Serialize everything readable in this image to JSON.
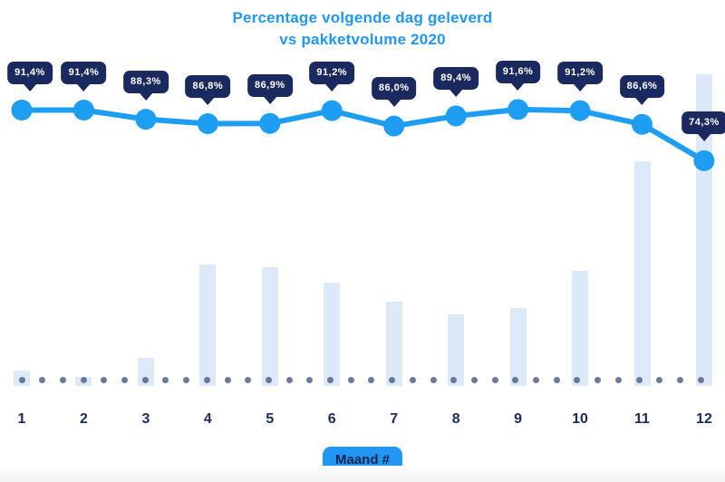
{
  "title": {
    "line1": "Percentage volgende dag geleverd",
    "line2": "vs pakketvolume 2020"
  },
  "xaxis": {
    "label": "Maand #"
  },
  "colors": {
    "line_blue": "#1d9ef2",
    "title_blue": "#2196f3",
    "badge_navy": "#1b2a5e",
    "bar_light_blue": "#dbe9f8",
    "dotted_baseline": "#5f6e93"
  },
  "chart_data": {
    "type": "combo",
    "title": "Percentage volgende dag geleverd vs pakketvolume 2020",
    "categories": [
      "1",
      "2",
      "3",
      "4",
      "5",
      "6",
      "7",
      "8",
      "9",
      "10",
      "11",
      "12"
    ],
    "xlabel": "Maand #",
    "ylabel": "",
    "legend": "none",
    "gridlines": "none",
    "baseline_style": "dotted",
    "series": [
      {
        "name": "Percentage volgende dag geleverd",
        "type": "line",
        "unit": "%",
        "values": [
          91.4,
          91.4,
          88.3,
          86.8,
          86.9,
          91.2,
          86.0,
          89.4,
          91.6,
          91.2,
          86.6,
          74.3
        ],
        "point_labels": [
          "91,4%",
          "91,4%",
          "88,3%",
          "86,8%",
          "86,9%",
          "91,2%",
          "86,0%",
          "89,4%",
          "91,6%",
          "91,2%",
          "86,6%",
          "74,3%"
        ]
      },
      {
        "name": "Pakketvolume 2020",
        "type": "bar",
        "unit": "relative volume (estimated, max month = 100)",
        "values": [
          5,
          3,
          9,
          39,
          38,
          33,
          27,
          23,
          25,
          37,
          72,
          100
        ]
      }
    ]
  }
}
